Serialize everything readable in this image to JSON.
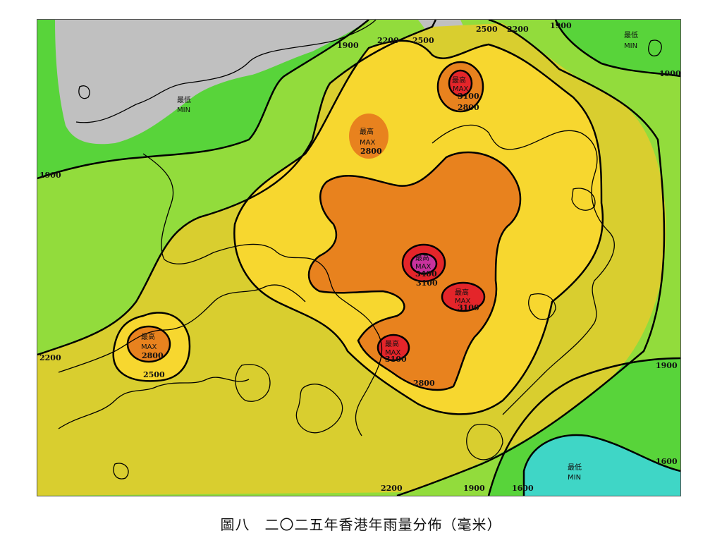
{
  "caption": "圖八　二〇二五年香港年雨量分佈（毫米）",
  "legend_colors": {
    "below_1600": "#3fd6c6",
    "1600_1900": "#58d43a",
    "1900_2200": "#92dc3c",
    "2200_2500": "#d9ce2f",
    "2500_2800": "#f7d72f",
    "2800_3100": "#e8821e",
    "3100_3400": "#e4252a",
    "above_3400": "#c8329c",
    "land_outside": "#c0c0c0"
  },
  "contour_labels": {
    "c1900_nw": "1900",
    "c2200_n": "2200",
    "c2500_n": "2500",
    "c2500_ne": "2500",
    "c2200_ne": "2200",
    "c1900_ne": "1900",
    "c1900_e": "1900",
    "c1900_w": "1900",
    "c2200_w": "2200",
    "c2500_w": "2500",
    "c2800_w": "2800",
    "c2800_n": "2800",
    "c3100_ne": "3100",
    "c2800_ne": "2800",
    "c3400_c": "3400",
    "c3100_c": "3100",
    "c3100_e": "3100",
    "c3100_s": "3100",
    "c2800_s": "2800",
    "c1900_se": "1900",
    "c1600_se": "1600",
    "c2200_s": "2200",
    "c1900_s": "1900",
    "c1600_s": "1600"
  },
  "markers": {
    "max_label_zh": "最高",
    "max_label_en": "MAX",
    "min_label_zh": "最低",
    "min_label_en": "MIN"
  }
}
